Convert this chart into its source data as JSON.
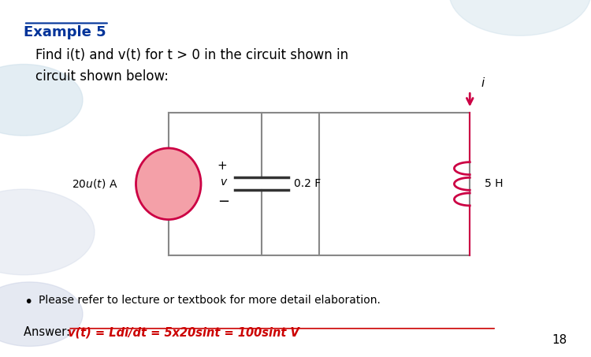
{
  "title": "Example 5",
  "subtitle_line1": "Find i(t) and v(t) for t > 0 in the circuit shown in",
  "subtitle_line2": "circuit shown below:",
  "title_color": "#003399",
  "text_color": "#000000",
  "bg_color": "#ffffff",
  "bullet_text": "Please refer to lecture or textbook for more detail elaboration.",
  "answer_prefix": "Answer: ",
  "answer_text": "v(t) = Ldi/dt = 5x20sint = 100sint V",
  "answer_color": "#cc0000",
  "page_number": "18",
  "pink_source_color": "#f4a0a8",
  "pink_arrow_color": "#cc0044",
  "inductor_color": "#cc0044",
  "rect_color": "#888888",
  "wire_color": "#888888",
  "blob_color1": "#c8dce8",
  "blob_color2": "#d0d8e8",
  "blob_color3": "#c0c8e0"
}
